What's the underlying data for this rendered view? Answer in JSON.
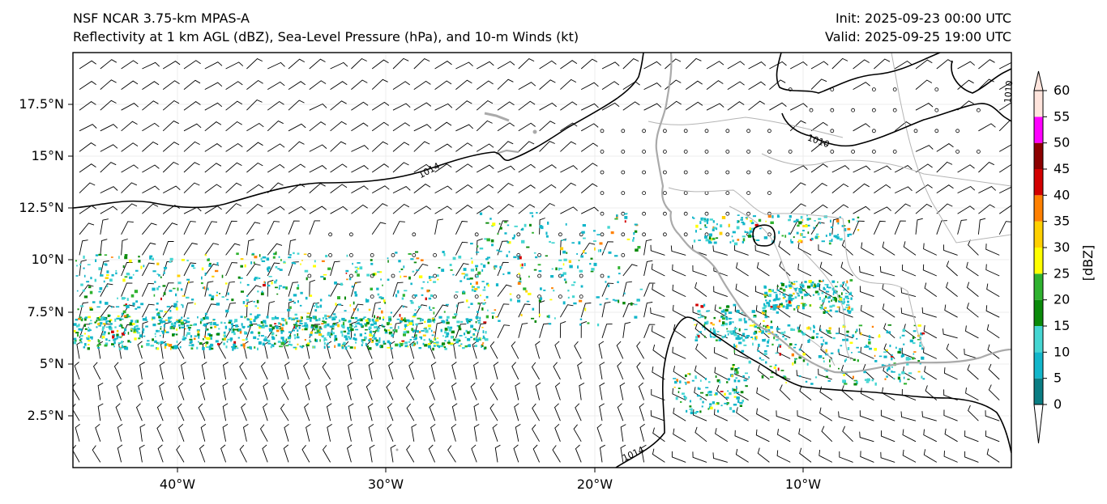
{
  "header": {
    "model": "NSF NCAR 3.75-km MPAS-A",
    "fields": "Reflectivity at 1 km AGL (dBZ), Sea-Level Pressure (hPa), and 10-m Winds (kt)",
    "init": "Init: 2025-09-23 00:00 UTC",
    "valid": "Valid: 2025-09-25 19:00 UTC"
  },
  "map": {
    "lon_range": [
      -45,
      -0.3
    ],
    "lat_range": [
      0,
      20
    ],
    "x_ticks": [
      "40°W",
      "30°W",
      "20°W",
      "10°W"
    ],
    "y_ticks": [
      "2.5°N",
      "5°N",
      "7.5°N",
      "10°N",
      "12.5°N",
      "15°N",
      "17.5°N"
    ],
    "isobar_labels": [
      "1014",
      "1010",
      "1010",
      "1014"
    ],
    "colors": {
      "isobar": "#000000",
      "coastline": "#aaaaaa",
      "border": "#b4b4b4",
      "grid": "#ececec",
      "wind_barb": "#000000"
    }
  },
  "colorbar": {
    "label": "[dBZ]",
    "ticks": [
      "0",
      "5",
      "10",
      "15",
      "20",
      "25",
      "30",
      "35",
      "40",
      "45",
      "50",
      "55",
      "60"
    ],
    "colors": [
      "#0a7d83",
      "#12b6ca",
      "#45d6d2",
      "#0a8a0a",
      "#2fb22f",
      "#ffff00",
      "#ffd000",
      "#ff8000",
      "#d20000",
      "#8c0000",
      "#ff00ff",
      "#ffe4dc"
    ]
  }
}
